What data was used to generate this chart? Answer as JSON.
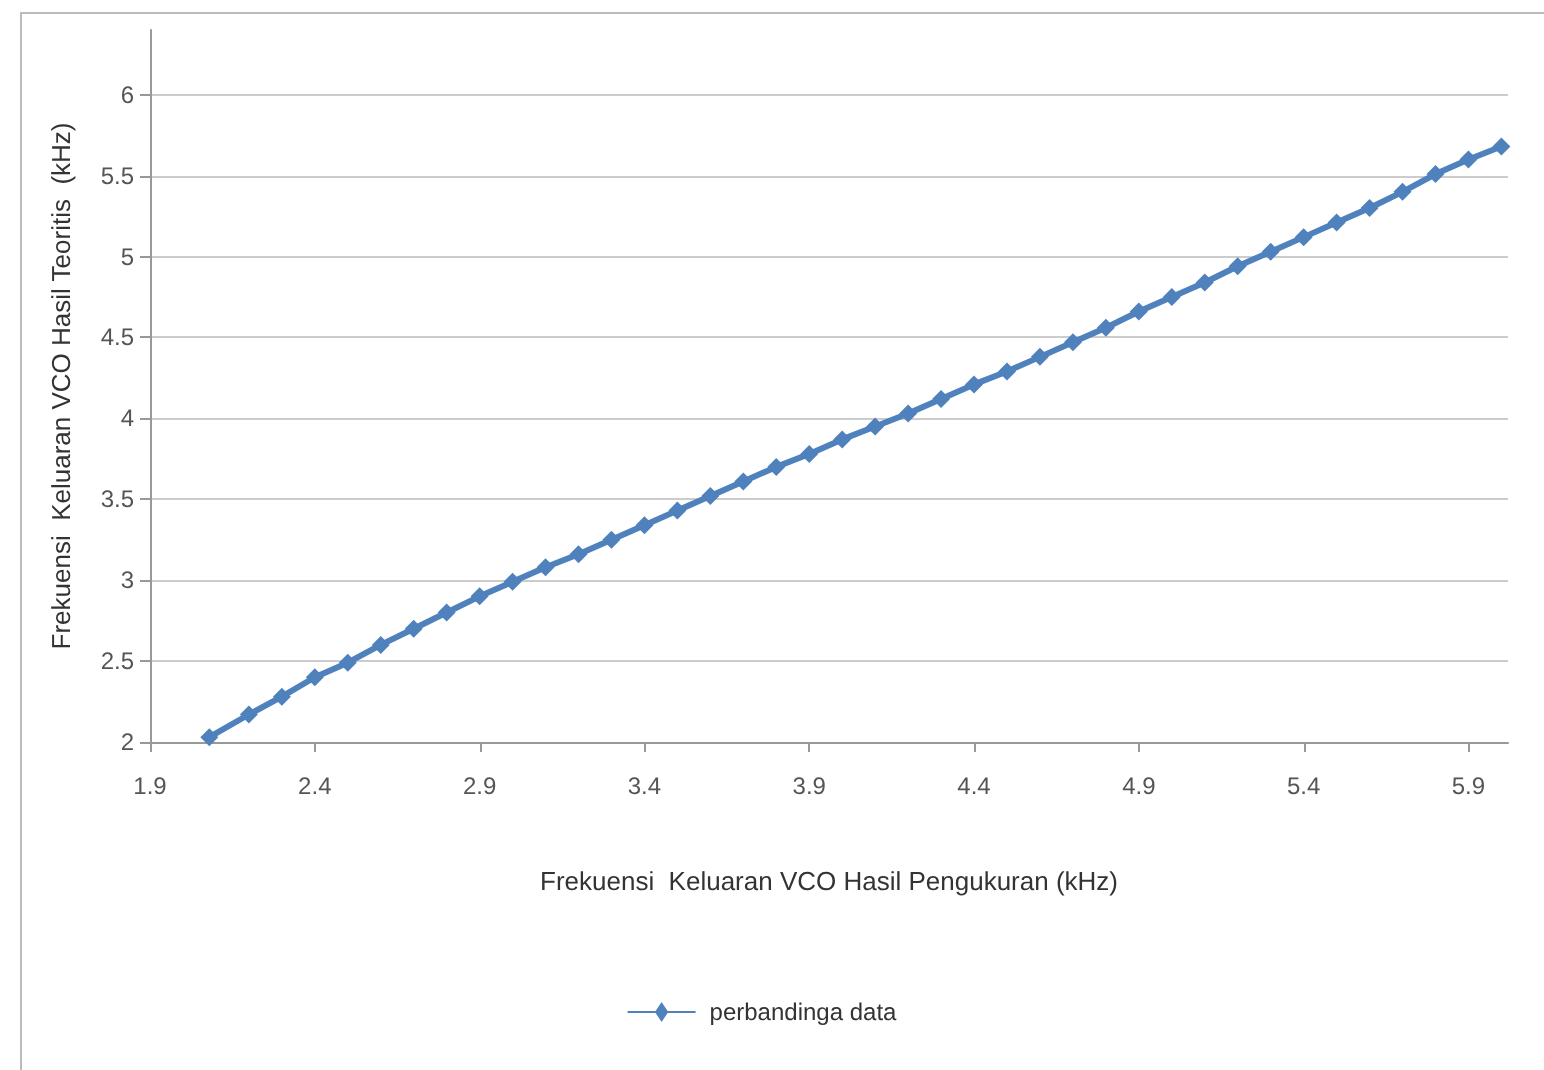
{
  "chart_data": {
    "type": "line",
    "xlabel": "Frekuensi  Keluaran VCO Hasil Pengukuran (kHz)",
    "ylabel": "Frekuensi  Keluaran VCO Hasil Teoritis  (kHz)",
    "x": [
      2.08,
      2.2,
      2.3,
      2.4,
      2.5,
      2.6,
      2.7,
      2.8,
      2.9,
      3.0,
      3.1,
      3.2,
      3.3,
      3.4,
      3.5,
      3.6,
      3.7,
      3.8,
      3.9,
      4.0,
      4.1,
      4.2,
      4.3,
      4.4,
      4.5,
      4.6,
      4.7,
      4.8,
      4.9,
      5.0,
      5.1,
      5.2,
      5.3,
      5.4,
      5.5,
      5.6,
      5.7,
      5.8,
      5.9,
      6.0
    ],
    "series": [
      {
        "name": "perbandinga data",
        "color": "#4f81bd",
        "values": [
          2.03,
          2.17,
          2.28,
          2.4,
          2.49,
          2.6,
          2.7,
          2.8,
          2.9,
          2.99,
          3.08,
          3.16,
          3.25,
          3.34,
          3.43,
          3.52,
          3.61,
          3.7,
          3.78,
          3.87,
          3.95,
          4.03,
          4.12,
          4.21,
          4.29,
          4.38,
          4.47,
          4.56,
          4.66,
          4.75,
          4.84,
          4.94,
          5.03,
          5.12,
          5.21,
          5.3,
          5.4,
          5.51,
          5.6,
          5.68
        ]
      }
    ],
    "xlim": [
      1.9,
      6.02
    ],
    "xticks": [
      1.9,
      2.4,
      2.9,
      3.4,
      3.9,
      4.4,
      4.9,
      5.4,
      5.9
    ],
    "ylim": [
      2,
      6.4
    ],
    "yticks": [
      2,
      2.5,
      3,
      3.5,
      4,
      4.5,
      5,
      5.5,
      6
    ],
    "grid": "y",
    "legend": "bottom",
    "marker": "diamond",
    "line_style": "solid"
  }
}
